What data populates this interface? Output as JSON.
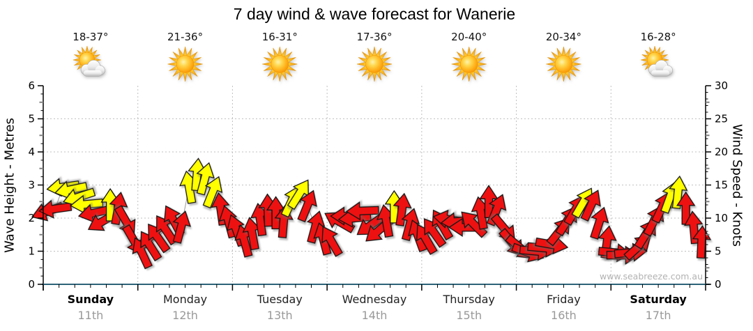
{
  "title": "7 day wind & wave forecast for Wanerie",
  "watermark": "www.seabreeze.com.au",
  "chart_data": {
    "type": "scatter",
    "subtype": "wind_arrow_timeseries",
    "title": "7 day wind & wave forecast for Wanerie",
    "left_axis": {
      "label": "Wave Height - Metres",
      "min": 0,
      "max": 6,
      "ticks": [
        0,
        1,
        2,
        3,
        4,
        5,
        6
      ]
    },
    "right_axis": {
      "label": "Wind Speed - Knots",
      "min": 0,
      "max": 30,
      "ticks": [
        0,
        5,
        10,
        15,
        20,
        25,
        30
      ]
    },
    "grid": "dotted horizontal at each metre, dotted vertical at day boundaries",
    "interval_hours": 2,
    "arrow_format": "[wind_speed_knots, direction_degrees_clockwise_from_up_arrow_points_toward, color_code]",
    "palette": {
      "r": "#ee1111",
      "y": "#ffff00",
      "outline": "#141414",
      "grid": "#c0c0c0",
      "baseline": "#2d6379",
      "axis": "#000000",
      "date_text": "#999999",
      "watermark_text": "#b2b2b2"
    },
    "days": [
      {
        "name": "Sunday",
        "date": "11th",
        "temp": "18-37°",
        "icon": "sun-cloud",
        "bold": true,
        "arrows": [
          [
            11.0,
            250,
            "r"
          ],
          [
            11.4,
            262,
            "r"
          ],
          [
            14.7,
            262,
            "y"
          ],
          [
            14.3,
            258,
            "y"
          ],
          [
            13.2,
            252,
            "y"
          ],
          [
            12.1,
            265,
            "y"
          ],
          [
            10.8,
            258,
            "r"
          ],
          [
            9.5,
            240,
            "r"
          ],
          [
            12.0,
            0,
            "y"
          ],
          [
            11.5,
            10,
            "r"
          ],
          [
            9.5,
            150,
            "r"
          ],
          [
            6.6,
            150,
            "r"
          ]
        ]
      },
      {
        "name": "Monday",
        "date": "12th",
        "temp": "21-36°",
        "icon": "sun",
        "bold": false,
        "arrows": [
          [
            4.8,
            335,
            "r"
          ],
          [
            5.9,
            328,
            "r"
          ],
          [
            7.1,
            325,
            "r"
          ],
          [
            8.3,
            327,
            "r"
          ],
          [
            9.7,
            332,
            "r"
          ],
          [
            8.7,
            15,
            "r"
          ],
          [
            14.7,
            350,
            "y"
          ],
          [
            16.6,
            5,
            "y"
          ],
          [
            16.0,
            15,
            "y"
          ],
          [
            14.0,
            22,
            "y"
          ],
          [
            11.4,
            352,
            "r"
          ],
          [
            9.5,
            345,
            "r"
          ]
        ]
      },
      {
        "name": "Tuesday",
        "date": "13th",
        "temp": "16-31°",
        "icon": "sun",
        "bold": false,
        "arrows": [
          [
            8.2,
            340,
            "r"
          ],
          [
            6.6,
            345,
            "r"
          ],
          [
            7.7,
            350,
            "r"
          ],
          [
            9.8,
            352,
            "r"
          ],
          [
            11.2,
            358,
            "r"
          ],
          [
            10.8,
            0,
            "r"
          ],
          [
            9.5,
            5,
            "r"
          ],
          [
            12.6,
            25,
            "y"
          ],
          [
            13.7,
            32,
            "y"
          ],
          [
            11.9,
            22,
            "r"
          ],
          [
            8.7,
            15,
            "r"
          ],
          [
            6.9,
            345,
            "r"
          ]
        ]
      },
      {
        "name": "Wednesday",
        "date": "14th",
        "temp": "17-36°",
        "icon": "sun",
        "bold": false,
        "arrows": [
          [
            6.6,
            330,
            "r"
          ],
          [
            9.5,
            300,
            "r"
          ],
          [
            10.3,
            270,
            "r"
          ],
          [
            10.0,
            265,
            "r"
          ],
          [
            11.1,
            268,
            "r"
          ],
          [
            8.9,
            235,
            "r"
          ],
          [
            8.1,
            230,
            "r"
          ],
          [
            9.6,
            350,
            "r"
          ],
          [
            11.7,
            0,
            "y"
          ],
          [
            11.3,
            8,
            "r"
          ],
          [
            9.1,
            15,
            "r"
          ],
          [
            7.4,
            340,
            "r"
          ]
        ]
      },
      {
        "name": "Thursday",
        "date": "15th",
        "temp": "20-40°",
        "icon": "sun",
        "bold": false,
        "arrows": [
          [
            6.9,
            330,
            "r"
          ],
          [
            7.9,
            325,
            "r"
          ],
          [
            9.1,
            330,
            "r"
          ],
          [
            9.8,
            280,
            "r"
          ],
          [
            9.5,
            265,
            "r"
          ],
          [
            8.6,
            270,
            "r"
          ],
          [
            9.2,
            315,
            "r"
          ],
          [
            10.8,
            350,
            "r"
          ],
          [
            12.5,
            0,
            "r"
          ],
          [
            11.3,
            22,
            "r"
          ],
          [
            8.4,
            140,
            "r"
          ],
          [
            6.2,
            140,
            "r"
          ]
        ]
      },
      {
        "name": "Friday",
        "date": "16th",
        "temp": "20-34°",
        "icon": "sun",
        "bold": false,
        "arrows": [
          [
            5.5,
            130,
            "r"
          ],
          [
            4.8,
            110,
            "r"
          ],
          [
            5.0,
            95,
            "r"
          ],
          [
            5.5,
            95,
            "r"
          ],
          [
            6.0,
            100,
            "r"
          ],
          [
            8.1,
            38,
            "r"
          ],
          [
            9.7,
            32,
            "r"
          ],
          [
            11.3,
            30,
            "r"
          ],
          [
            12.4,
            30,
            "y"
          ],
          [
            12.0,
            25,
            "r"
          ],
          [
            9.3,
            18,
            "r"
          ],
          [
            6.4,
            8,
            "r"
          ]
        ]
      },
      {
        "name": "Saturday",
        "date": "17th",
        "temp": "16-28°",
        "icon": "sun-cloud",
        "bold": true,
        "arrows": [
          [
            4.8,
            95,
            "r"
          ],
          [
            4.4,
            90,
            "r"
          ],
          [
            4.8,
            85,
            "r"
          ],
          [
            5.7,
            48,
            "r"
          ],
          [
            7.7,
            32,
            "r"
          ],
          [
            9.7,
            27,
            "r"
          ],
          [
            11.7,
            25,
            "r"
          ],
          [
            13.2,
            20,
            "y"
          ],
          [
            13.9,
            6,
            "y"
          ],
          [
            11.5,
            0,
            "r"
          ],
          [
            8.6,
            355,
            "r"
          ],
          [
            6.4,
            3,
            "r"
          ]
        ]
      }
    ]
  }
}
